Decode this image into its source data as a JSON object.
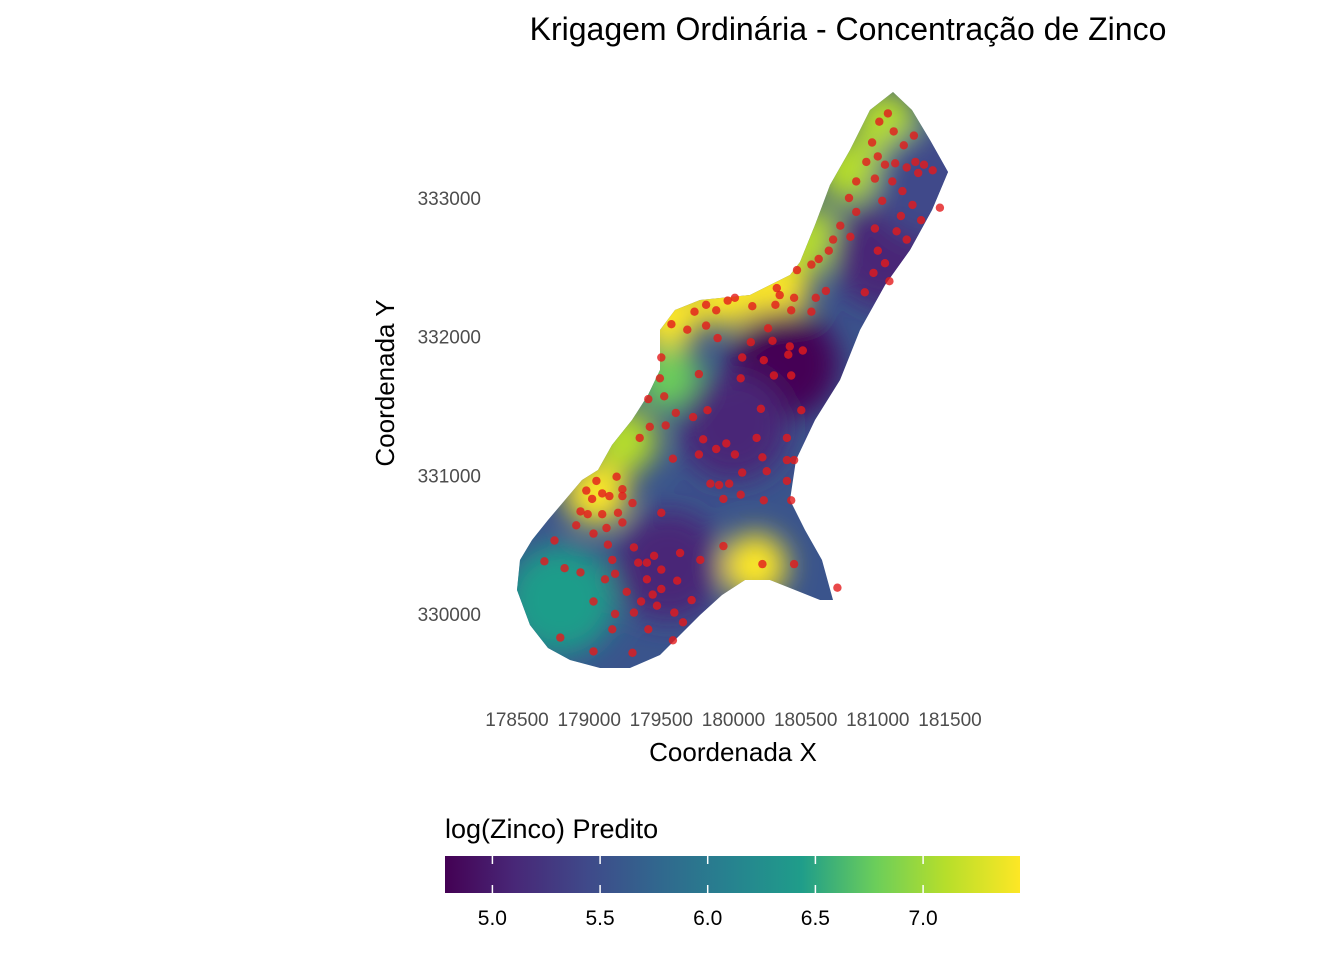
{
  "chart_data": {
    "type": "heatmap",
    "title": "Krigagem Ordinária - Concentração de Zinco",
    "xlabel": "Coordenada X",
    "ylabel": "Coordenada Y",
    "x_ticks": [
      178500,
      179000,
      179500,
      180000,
      180500,
      181000,
      181500
    ],
    "x_tick_labels": [
      "178500",
      "179000",
      "179500",
      "180000",
      "180500",
      "181000",
      "181500"
    ],
    "y_ticks": [
      330000,
      331000,
      332000,
      333000
    ],
    "y_tick_labels": [
      "330000",
      "331000",
      "332000",
      "333000"
    ],
    "xlim": [
      178400,
      181600
    ],
    "ylim": [
      329600,
      333700
    ],
    "grid": false,
    "legend": {
      "title": "log(Zinco) Predito",
      "position": "bottom",
      "min": 4.78,
      "max": 7.45,
      "ticks": [
        5.0,
        5.5,
        6.0,
        6.5,
        7.0
      ],
      "tick_labels": [
        "5.0",
        "5.5",
        "6.0",
        "6.5",
        "7.0"
      ],
      "colormap": "viridis",
      "colors": [
        "#440154",
        "#482777",
        "#3F4A8A",
        "#31678E",
        "#26838F",
        "#1F9D8A",
        "#6CCE5A",
        "#B6DE2B",
        "#FDE725"
      ]
    },
    "points_color": "#e41a1c",
    "prediction_hotspots": [
      {
        "x": 179050,
        "y": 330870,
        "value": 7.3
      },
      {
        "x": 179250,
        "y": 331250,
        "value": 7.0
      },
      {
        "x": 179550,
        "y": 331700,
        "value": 6.9
      },
      {
        "x": 179550,
        "y": 332150,
        "value": 7.3
      },
      {
        "x": 179950,
        "y": 332300,
        "value": 7.4
      },
      {
        "x": 180300,
        "y": 332350,
        "value": 7.4
      },
      {
        "x": 180550,
        "y": 332700,
        "value": 7.1
      },
      {
        "x": 180800,
        "y": 333200,
        "value": 7.0
      },
      {
        "x": 181050,
        "y": 333550,
        "value": 7.1
      },
      {
        "x": 180150,
        "y": 330350,
        "value": 7.3
      },
      {
        "x": 180350,
        "y": 331800,
        "value": 4.85
      },
      {
        "x": 180000,
        "y": 331350,
        "value": 5.0
      },
      {
        "x": 179550,
        "y": 330350,
        "value": 5.2
      },
      {
        "x": 181050,
        "y": 332600,
        "value": 5.1
      },
      {
        "x": 181350,
        "y": 333100,
        "value": 5.6
      },
      {
        "x": 178800,
        "y": 330100,
        "value": 6.3
      }
    ],
    "observation_points": [
      [
        181070,
        333610
      ],
      [
        181010,
        333550
      ],
      [
        181110,
        333480
      ],
      [
        180960,
        333400
      ],
      [
        181250,
        333450
      ],
      [
        181180,
        333380
      ],
      [
        181000,
        333300
      ],
      [
        180920,
        333260
      ],
      [
        181050,
        333240
      ],
      [
        181120,
        333250
      ],
      [
        181200,
        333220
      ],
      [
        181260,
        333260
      ],
      [
        181320,
        333240
      ],
      [
        181380,
        333200
      ],
      [
        181280,
        333180
      ],
      [
        180850,
        333120
      ],
      [
        180980,
        333140
      ],
      [
        181100,
        333120
      ],
      [
        181170,
        333050
      ],
      [
        180800,
        333000
      ],
      [
        181030,
        332980
      ],
      [
        181240,
        332950
      ],
      [
        181430,
        332930
      ],
      [
        180850,
        332900
      ],
      [
        181160,
        332870
      ],
      [
        181300,
        332840
      ],
      [
        180740,
        332800
      ],
      [
        180980,
        332780
      ],
      [
        181130,
        332760
      ],
      [
        181200,
        332700
      ],
      [
        180690,
        332700
      ],
      [
        180810,
        332720
      ],
      [
        180660,
        332620
      ],
      [
        181000,
        332620
      ],
      [
        180590,
        332560
      ],
      [
        180540,
        332520
      ],
      [
        180440,
        332480
      ],
      [
        181050,
        332530
      ],
      [
        180970,
        332460
      ],
      [
        181080,
        332400
      ],
      [
        180910,
        332320
      ],
      [
        180640,
        332330
      ],
      [
        180300,
        332350
      ],
      [
        180320,
        332300
      ],
      [
        180010,
        332280
      ],
      [
        179960,
        332260
      ],
      [
        180420,
        332280
      ],
      [
        180570,
        332280
      ],
      [
        179810,
        332230
      ],
      [
        179730,
        332180
      ],
      [
        179880,
        332190
      ],
      [
        180130,
        332220
      ],
      [
        180290,
        332230
      ],
      [
        180400,
        332190
      ],
      [
        180540,
        332180
      ],
      [
        179570,
        332090
      ],
      [
        179680,
        332050
      ],
      [
        179810,
        332080
      ],
      [
        180240,
        332060
      ],
      [
        179890,
        331990
      ],
      [
        180120,
        331960
      ],
      [
        180270,
        331970
      ],
      [
        180390,
        331930
      ],
      [
        180480,
        331900
      ],
      [
        180060,
        331850
      ],
      [
        180210,
        331830
      ],
      [
        180380,
        331870
      ],
      [
        179760,
        331730
      ],
      [
        180050,
        331700
      ],
      [
        180280,
        331720
      ],
      [
        180400,
        331720
      ],
      [
        179500,
        331850
      ],
      [
        179490,
        331700
      ],
      [
        179520,
        331570
      ],
      [
        179410,
        331550
      ],
      [
        179600,
        331450
      ],
      [
        179720,
        331420
      ],
      [
        179820,
        331470
      ],
      [
        180190,
        331480
      ],
      [
        180470,
        331470
      ],
      [
        179530,
        331360
      ],
      [
        179420,
        331350
      ],
      [
        179350,
        331270
      ],
      [
        179790,
        331260
      ],
      [
        180160,
        331270
      ],
      [
        179950,
        331230
      ],
      [
        180370,
        331270
      ],
      [
        179580,
        331120
      ],
      [
        179760,
        331150
      ],
      [
        179880,
        331190
      ],
      [
        180010,
        331150
      ],
      [
        180200,
        331130
      ],
      [
        180370,
        331110
      ],
      [
        180420,
        331110
      ],
      [
        180060,
        331020
      ],
      [
        180230,
        331030
      ],
      [
        180370,
        330960
      ],
      [
        179190,
        330990
      ],
      [
        179050,
        330960
      ],
      [
        179230,
        330900
      ],
      [
        179840,
        330940
      ],
      [
        179900,
        330930
      ],
      [
        179970,
        330940
      ],
      [
        178980,
        330890
      ],
      [
        179090,
        330870
      ],
      [
        179140,
        330850
      ],
      [
        179230,
        330850
      ],
      [
        179020,
        330830
      ],
      [
        179300,
        330800
      ],
      [
        179930,
        330830
      ],
      [
        180050,
        330860
      ],
      [
        180210,
        330820
      ],
      [
        180400,
        330820
      ],
      [
        178940,
        330740
      ],
      [
        178990,
        330720
      ],
      [
        179090,
        330720
      ],
      [
        179200,
        330730
      ],
      [
        179500,
        330730
      ],
      [
        178910,
        330640
      ],
      [
        179120,
        330620
      ],
      [
        179230,
        330660
      ],
      [
        179030,
        330580
      ],
      [
        178760,
        330530
      ],
      [
        179130,
        330500
      ],
      [
        179630,
        330440
      ],
      [
        179930,
        330490
      ],
      [
        179310,
        330480
      ],
      [
        179450,
        330420
      ],
      [
        178690,
        330380
      ],
      [
        179160,
        330390
      ],
      [
        179340,
        330370
      ],
      [
        179400,
        330370
      ],
      [
        179770,
        330390
      ],
      [
        179500,
        330320
      ],
      [
        179180,
        330290
      ],
      [
        179110,
        330250
      ],
      [
        179610,
        330240
      ],
      [
        180200,
        330360
      ],
      [
        180420,
        330360
      ],
      [
        178830,
        330330
      ],
      [
        178940,
        330300
      ],
      [
        179400,
        330250
      ],
      [
        179500,
        330180
      ],
      [
        179260,
        330160
      ],
      [
        179440,
        330140
      ],
      [
        180720,
        330190
      ],
      [
        179030,
        330090
      ],
      [
        179360,
        330090
      ],
      [
        179470,
        330060
      ],
      [
        179710,
        330100
      ],
      [
        179180,
        330000
      ],
      [
        179310,
        330010
      ],
      [
        179590,
        330010
      ],
      [
        179160,
        329890
      ],
      [
        179410,
        329890
      ],
      [
        179650,
        329940
      ],
      [
        178800,
        329830
      ],
      [
        179580,
        329810
      ],
      [
        179030,
        329730
      ],
      [
        179300,
        329720
      ]
    ]
  }
}
